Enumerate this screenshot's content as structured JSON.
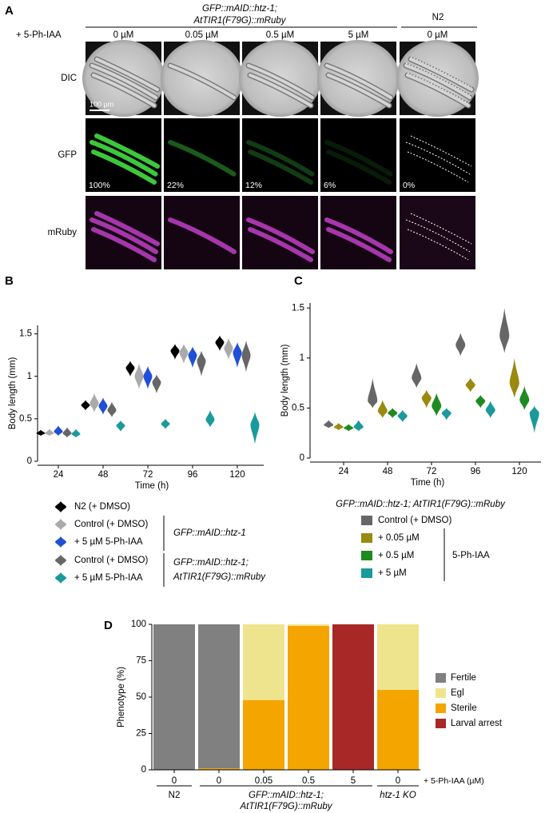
{
  "panel_a": {
    "label": "A",
    "genotype": [
      "GFP::mAID::htz-1;",
      "AtTIR1(F79G)::mRuby"
    ],
    "control": "N2",
    "treatment": "+ 5-Ph-IAA",
    "conditions": [
      "0 µM",
      "0.05 µM",
      "0.5 µM",
      "5 µM",
      "0 µM"
    ],
    "rows": [
      "DIC",
      "GFP",
      "mRuby"
    ],
    "gfp_levels": [
      "100%",
      "22%",
      "12%",
      "6%",
      "0%"
    ],
    "scale_bar": "100 µm"
  },
  "chart_data": [
    {
      "type": "violin",
      "panel": "B",
      "xlabel": "Time (h)",
      "ylabel": "Body length (mm)",
      "categories": [
        "24",
        "48",
        "72",
        "96",
        "120"
      ],
      "ylim": [
        0,
        1.6
      ],
      "yticks": [
        0,
        0.5,
        1,
        1.5
      ],
      "series": [
        {
          "name": "N2 (+ DMSO)",
          "color": "#000000",
          "values": [
            0.33,
            0.66,
            1.1,
            1.3,
            1.4
          ],
          "low": [
            0.3,
            0.6,
            1.0,
            1.2,
            1.3
          ],
          "high": [
            0.37,
            0.72,
            1.18,
            1.38,
            1.48
          ]
        },
        {
          "name": "Control (+ DMSO)",
          "color": "#aaaaaa",
          "values": [
            0.33,
            0.68,
            1.0,
            1.28,
            1.33
          ],
          "low": [
            0.3,
            0.58,
            0.85,
            1.15,
            1.2
          ],
          "high": [
            0.38,
            0.8,
            1.15,
            1.38,
            1.45
          ]
        },
        {
          "name": "+ 5 µM 5-Ph-IAA",
          "color": "#1f4fd8",
          "values": [
            0.35,
            0.65,
            1.0,
            1.25,
            1.28
          ],
          "low": [
            0.3,
            0.55,
            0.85,
            1.1,
            1.1
          ],
          "high": [
            0.42,
            0.75,
            1.12,
            1.35,
            1.4
          ]
        },
        {
          "name": "Control (+ DMSO)",
          "color": "#666666",
          "values": [
            0.33,
            0.6,
            0.93,
            1.18,
            1.25
          ],
          "low": [
            0.28,
            0.52,
            0.8,
            1.0,
            1.05
          ],
          "high": [
            0.4,
            0.7,
            1.02,
            1.3,
            1.42
          ]
        },
        {
          "name": "+ 5 µM 5-Ph-IAA",
          "color": "#1a9a9a",
          "values": [
            0.32,
            0.42,
            0.44,
            0.49,
            0.43
          ],
          "low": [
            0.28,
            0.35,
            0.38,
            0.4,
            0.2
          ],
          "high": [
            0.38,
            0.48,
            0.5,
            0.6,
            0.58
          ]
        }
      ],
      "legend_groups": [
        [
          "GFP::mAID::htz-1"
        ],
        [
          "GFP::mAID::htz-1;",
          "AtTIR1(F79G)::mRuby"
        ]
      ]
    },
    {
      "type": "violin",
      "panel": "C",
      "xlabel": "Time (h)",
      "ylabel": "Body length (mm)",
      "categories": [
        "24",
        "48",
        "72",
        "96",
        "120"
      ],
      "ylim": [
        0,
        1.55
      ],
      "yticks": [
        0,
        0.5,
        1,
        1.5
      ],
      "legend_title": "GFP::mAID::htz-1; AtTIR1(F79G)::mRuby",
      "legend_bracket": "5-Ph-IAA",
      "series": [
        {
          "name": "Control (+ DMSO)",
          "color": "#666666",
          "values": [
            0.33,
            0.57,
            0.8,
            1.13,
            1.22
          ],
          "low": [
            0.3,
            0.5,
            0.7,
            1.02,
            1.05
          ],
          "high": [
            0.38,
            0.8,
            0.95,
            1.25,
            1.5
          ]
        },
        {
          "name": "+ 0.05 µM",
          "color": "#9a8a10",
          "values": [
            0.31,
            0.47,
            0.6,
            0.73,
            0.75
          ],
          "low": [
            0.28,
            0.4,
            0.5,
            0.66,
            0.6
          ],
          "high": [
            0.35,
            0.58,
            0.68,
            0.8,
            1.0
          ]
        },
        {
          "name": "+ 0.5 µM",
          "color": "#1f8a1f",
          "values": [
            0.3,
            0.45,
            0.52,
            0.57,
            0.58
          ],
          "low": [
            0.27,
            0.4,
            0.42,
            0.5,
            0.48
          ],
          "high": [
            0.34,
            0.5,
            0.65,
            0.63,
            0.72
          ]
        },
        {
          "name": "+ 5 µM",
          "color": "#1a9a9a",
          "values": [
            0.31,
            0.42,
            0.45,
            0.48,
            0.45
          ],
          "low": [
            0.27,
            0.36,
            0.38,
            0.4,
            0.25
          ],
          "high": [
            0.38,
            0.48,
            0.5,
            0.57,
            0.52
          ]
        }
      ]
    },
    {
      "type": "bar",
      "panel": "D",
      "stacked": true,
      "ylabel": "Phenotype (%)",
      "x_annotation": "+ 5-Ph-IAA (µM)",
      "categories": [
        "0",
        "0",
        "0.05",
        "0.5",
        "5",
        "0"
      ],
      "ylim": [
        0,
        100
      ],
      "yticks": [
        0,
        25,
        50,
        75,
        100
      ],
      "group_labels": [
        [
          "N2"
        ],
        [
          "GFP::mAID::htz-1;",
          "AtTIR1(F79G)::mRuby"
        ],
        [
          "htz-1 KO"
        ]
      ],
      "series": [
        {
          "name": "Fertile",
          "color": "#808080",
          "values": [
            100,
            99,
            0,
            0,
            0,
            0
          ]
        },
        {
          "name": "Egl",
          "color": "#efe48e",
          "values": [
            0,
            0,
            52,
            1,
            0,
            45
          ]
        },
        {
          "name": "Sterile",
          "color": "#f5a500",
          "values": [
            0,
            1,
            48,
            99,
            0,
            55
          ]
        },
        {
          "name": "Larval arrest",
          "color": "#a82828",
          "values": [
            0,
            0,
            0,
            0,
            100,
            0
          ]
        }
      ]
    }
  ]
}
